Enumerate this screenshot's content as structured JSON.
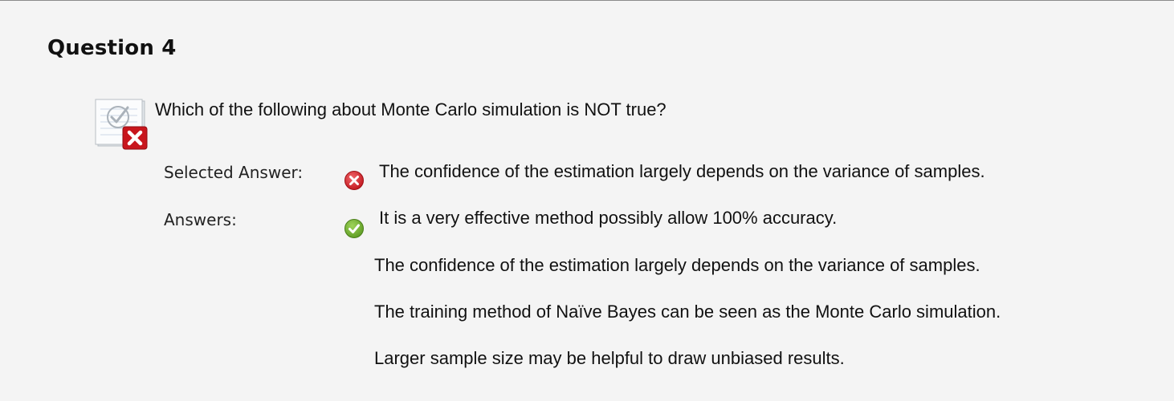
{
  "question": {
    "title": "Question 4",
    "text": "Which of the following about Monte Carlo simulation is NOT true?",
    "status_icon": "incorrect-question-icon"
  },
  "selected_answer": {
    "label": "Selected Answer:",
    "icon": "incorrect-x-icon",
    "text": "The confidence of the estimation largely depends on the variance of samples."
  },
  "answers": {
    "label": "Answers:",
    "correct_icon": "correct-check-icon",
    "items": [
      "It is a very effective method possibly allow 100% accuracy.",
      "The confidence of the estimation largely depends on the variance of samples.",
      "The training method of Naïve Bayes can be seen as the Monte Carlo simulation.",
      "Larger sample size may be helpful to draw unbiased results."
    ]
  },
  "colors": {
    "background": "#f4f4f4",
    "incorrect": "#d4232a",
    "correct": "#6aa92a"
  }
}
